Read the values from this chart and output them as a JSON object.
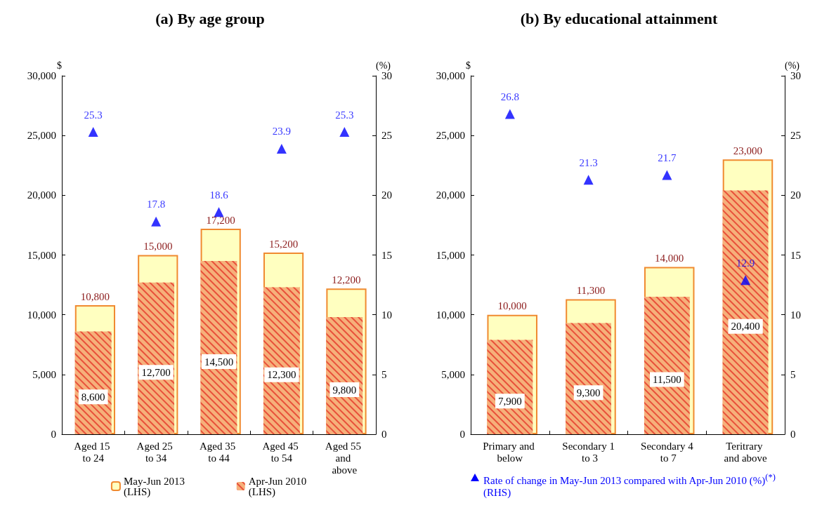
{
  "chart_data": [
    {
      "type": "bar",
      "title": "(a) By age group",
      "ylabel": "$",
      "y2label": "(%)",
      "categories": [
        "Aged 15 to 24",
        "Aged 25 to 34",
        "Aged 35 to 44",
        "Aged 45 to 54",
        "Aged 55 and above"
      ],
      "series": [
        {
          "name": "May-Jun 2013 (LHS)",
          "color": "#ffffc0",
          "values": [
            10800,
            15000,
            17200,
            15200,
            12200
          ],
          "value_labels": [
            "10,800",
            "15,000",
            "17,200",
            "15,200",
            "12,200"
          ]
        },
        {
          "name": "Apr-Jun 2010 (LHS)",
          "color": "#f6b07a",
          "values": [
            8600,
            12700,
            14500,
            12300,
            9800
          ],
          "value_labels": [
            "8,600",
            "12,700",
            "14,500",
            "12,300",
            "9,800"
          ]
        },
        {
          "type": "scatter",
          "axis": "y2",
          "color": "#0000ff",
          "values": [
            25.3,
            17.8,
            18.6,
            23.9,
            25.3
          ],
          "value_labels": [
            "25.3",
            "17.8",
            "18.6",
            "23.9",
            "25.3"
          ]
        }
      ],
      "ylim": [
        0,
        30000
      ],
      "yticks": [
        {
          "value": 0,
          "label": "0"
        },
        {
          "value": 5000,
          "label": "5,000"
        },
        {
          "value": 10000,
          "label": "10,000"
        },
        {
          "value": 15000,
          "label": "15,000"
        },
        {
          "value": 20000,
          "label": "20,000"
        },
        {
          "value": 25000,
          "label": "25,000"
        },
        {
          "value": 30000,
          "label": "30,000"
        }
      ],
      "y2lim": [
        0,
        30
      ],
      "y2ticks": [
        0,
        5,
        10,
        15,
        20,
        25,
        30
      ],
      "marker": "triangle",
      "grid": false,
      "legend": "bottom"
    },
    {
      "type": "bar",
      "title": "(b) By educational attainment",
      "ylabel": "$",
      "y2label": "(%)",
      "categories": [
        "Primary and below",
        "Secondary 1 to 3",
        "Secondary 4 to 7",
        "Teritrary and above"
      ],
      "series": [
        {
          "color": "#ffffc0",
          "values": [
            10000,
            11300,
            14000,
            23000
          ],
          "value_labels": [
            "10,000",
            "11,300",
            "14,000",
            "23,000"
          ]
        },
        {
          "color": "#f6b07a",
          "values": [
            7900,
            9300,
            11500,
            20400
          ],
          "value_labels": [
            "7,900",
            "9,300",
            "11,500",
            "20,400"
          ]
        },
        {
          "name": "Rate of change in May-Jun 2013 compared with Apr-Jun 2010 (%)$^{(*)}$ (RHS)",
          "type": "scatter",
          "axis": "y2",
          "color": "#0000ff",
          "values": [
            26.8,
            21.3,
            21.7,
            12.9
          ],
          "value_labels": [
            "26.8",
            "21.3",
            "21.7",
            "12.9"
          ]
        }
      ],
      "ylim": [
        0,
        30000
      ],
      "yticks": [
        {
          "value": 0,
          "label": "0"
        },
        {
          "value": 5000,
          "label": "5,000"
        },
        {
          "value": 10000,
          "label": "10,000"
        },
        {
          "value": 15000,
          "label": "15,000"
        },
        {
          "value": 20000,
          "label": "20,000"
        },
        {
          "value": 25000,
          "label": "25,000"
        },
        {
          "value": 30000,
          "label": "30,000"
        }
      ],
      "y2lim": [
        0,
        30
      ],
      "y2ticks": [
        0,
        5,
        10,
        15,
        20,
        25,
        30
      ],
      "marker": "triangle",
      "grid": false,
      "legend": "bottom"
    }
  ]
}
